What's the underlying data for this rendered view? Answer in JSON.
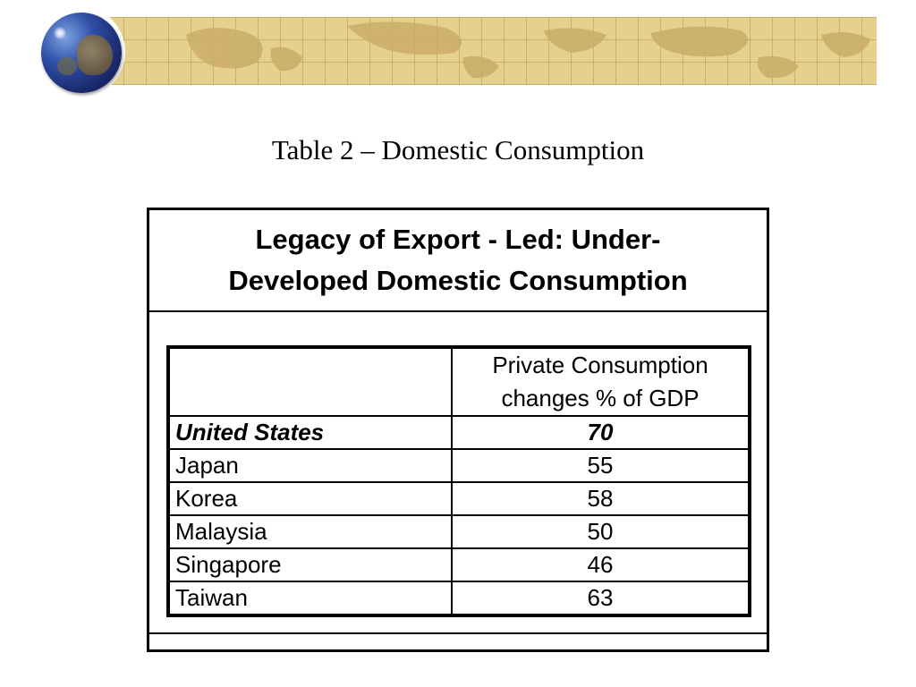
{
  "slide": {
    "title": "Table 2 – Domestic Consumption"
  },
  "decor": {
    "globe": "globe-icon",
    "banner": "world-map-banner",
    "banner_color": "#e6d08e",
    "land_color": "#c9ad68"
  },
  "table_card": {
    "heading_line1": "Legacy of Export - Led: Under-",
    "heading_line2": "Developed Domestic Consumption",
    "column_header_country": "",
    "column_header_value_line1": "Private Consumption",
    "column_header_value_line2": "changes % of GDP",
    "rows": [
      {
        "country": "United States",
        "value": "70",
        "emphasis": true
      },
      {
        "country": "Japan",
        "value": "55",
        "emphasis": false
      },
      {
        "country": "Korea",
        "value": "58",
        "emphasis": false
      },
      {
        "country": "Malaysia",
        "value": "50",
        "emphasis": false
      },
      {
        "country": "Singapore",
        "value": "46",
        "emphasis": false
      },
      {
        "country": "Taiwan",
        "value": "63",
        "emphasis": false
      }
    ]
  }
}
